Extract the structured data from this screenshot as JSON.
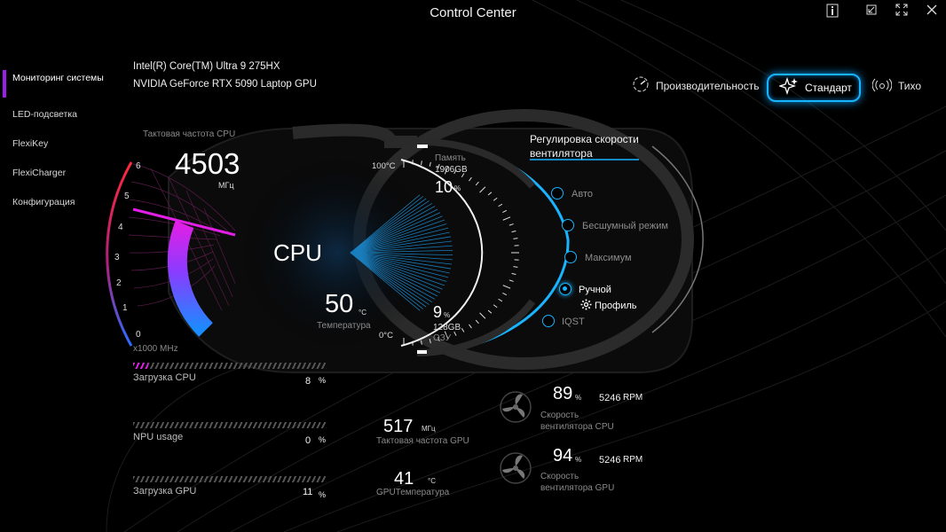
{
  "window": {
    "title": "Control Center",
    "buttons": [
      "info",
      "restore",
      "fullscreen",
      "close"
    ]
  },
  "sidebar": {
    "items": [
      {
        "label": "Мониторинг системы",
        "active": true
      },
      {
        "label": "LED-подсветка"
      },
      {
        "label": "FlexiKey"
      },
      {
        "label": "FlexiCharger"
      },
      {
        "label": "Конфигурация"
      }
    ]
  },
  "hardware": {
    "cpu": "Intel(R) Core(TM) Ultra 9 275HX",
    "gpu": "NVIDIA GeForce RTX 5090 Laptop GPU"
  },
  "modes": {
    "performance": "Производительность",
    "standard": "Стандарт",
    "quiet": "Тихо",
    "selected": "standard"
  },
  "cpu_gauge": {
    "clock_label": "Тактовая частота CPU",
    "clock_value": "4503",
    "clock_unit": "МГц",
    "scale_unit": "x1000 MHz",
    "ticks": [
      "6",
      "5",
      "4",
      "3",
      "2",
      "1",
      "0"
    ],
    "level_fraction": 0.75,
    "center_label": "CPU",
    "temp_value": "50",
    "temp_unit": "°C",
    "temp_label": "Температура",
    "temp_max": "100°C",
    "temp_min": "0°C"
  },
  "memory": {
    "label": "Память",
    "total": "1906GB",
    "percent": "10",
    "percent_unit": "%"
  },
  "ram": {
    "percent": "9",
    "percent_unit": "%",
    "total": "128GB",
    "label": "ОЗУ"
  },
  "fan_control": {
    "title": "Регулировка скорости вентилятора",
    "options": [
      "Авто",
      "Бесшумный режим",
      "Максимум",
      "Ручной",
      "IQST"
    ],
    "selected": "Ручной",
    "profile_label": "Профиль"
  },
  "stats": {
    "cpu_load": {
      "label": "Загрузка CPU",
      "value": "8",
      "unit": "%",
      "fraction": 0.08
    },
    "npu_usage": {
      "label": "NPU usage",
      "value": "0",
      "unit": "%",
      "fraction": 0
    },
    "gpu_load": {
      "label": "Загрузка GPU",
      "value": "11",
      "unit": "%",
      "fraction": 0.11
    },
    "gpu_clock": {
      "label": "Тактовая частота GPU",
      "value": "517",
      "unit": "МГц"
    },
    "gpu_temp": {
      "label": "GPUТемпература",
      "value": "41",
      "unit": "°C"
    }
  },
  "fans": {
    "cpu": {
      "percent": "89",
      "unit": "%",
      "rpm": "5246",
      "rpm_unit": "RPM",
      "label": "Скорость вентилятора CPU"
    },
    "gpu": {
      "percent": "94",
      "unit": "%",
      "rpm": "5246",
      "rpm_unit": "RPM",
      "label": "Скорость вентилятора GPU"
    }
  },
  "colors": {
    "accent": "#19b4ff",
    "active_bar": "#9b1fe8",
    "gauge_magenta": "#e11fe6",
    "gauge_blue": "#1a8cff"
  }
}
